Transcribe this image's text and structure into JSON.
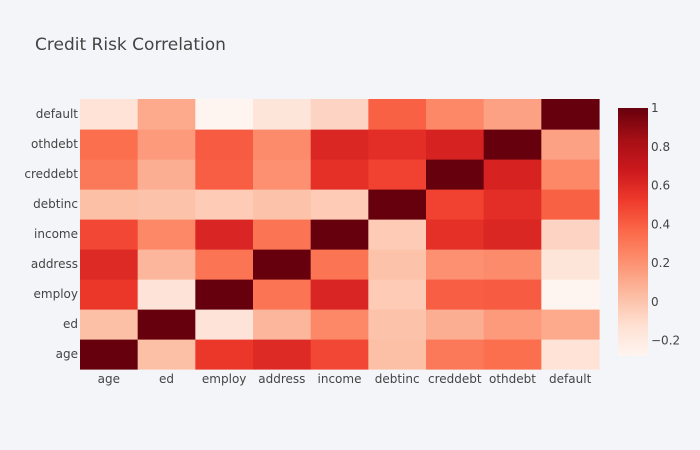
{
  "chart_data": {
    "type": "heatmap",
    "title": "Credit Risk Correlation",
    "xlabel": "",
    "ylabel": "",
    "x": [
      "age",
      "ed",
      "employ",
      "address",
      "income",
      "debtinc",
      "creddebt",
      "othdebt",
      "default"
    ],
    "y": [
      "age",
      "ed",
      "employ",
      "address",
      "income",
      "debtinc",
      "creddebt",
      "othdebt",
      "default"
    ],
    "z": [
      [
        1.0,
        0.02,
        0.54,
        0.6,
        0.48,
        0.02,
        0.3,
        0.34,
        -0.14
      ],
      [
        0.02,
        1.0,
        -0.15,
        0.06,
        0.24,
        0.01,
        0.09,
        0.17,
        0.11
      ],
      [
        0.54,
        -0.15,
        1.0,
        0.32,
        0.62,
        -0.03,
        0.4,
        0.41,
        -0.28
      ],
      [
        0.6,
        0.06,
        0.32,
        1.0,
        0.32,
        0.01,
        0.21,
        0.23,
        -0.16
      ],
      [
        0.48,
        0.24,
        0.62,
        0.32,
        1.0,
        -0.03,
        0.57,
        0.61,
        -0.07
      ],
      [
        0.02,
        0.01,
        -0.03,
        0.01,
        -0.03,
        1.0,
        0.5,
        0.58,
        0.39
      ],
      [
        0.3,
        0.09,
        0.4,
        0.21,
        0.57,
        0.5,
        1.0,
        0.63,
        0.24
      ],
      [
        0.34,
        0.17,
        0.41,
        0.23,
        0.61,
        0.58,
        0.63,
        1.0,
        0.14
      ],
      [
        -0.14,
        0.11,
        -0.28,
        -0.16,
        -0.07,
        0.39,
        0.24,
        0.14,
        1.0
      ]
    ],
    "zmin": -0.28,
    "zmax": 1.0,
    "colorscale": "Reds",
    "colorbar": {
      "tickvals": [
        -0.2,
        0,
        0.2,
        0.4,
        0.6,
        0.8,
        1
      ],
      "ticklabels": [
        "−0.2",
        "0",
        "0.2",
        "0.4",
        "0.6",
        "0.8",
        "1"
      ]
    },
    "grid": false
  }
}
